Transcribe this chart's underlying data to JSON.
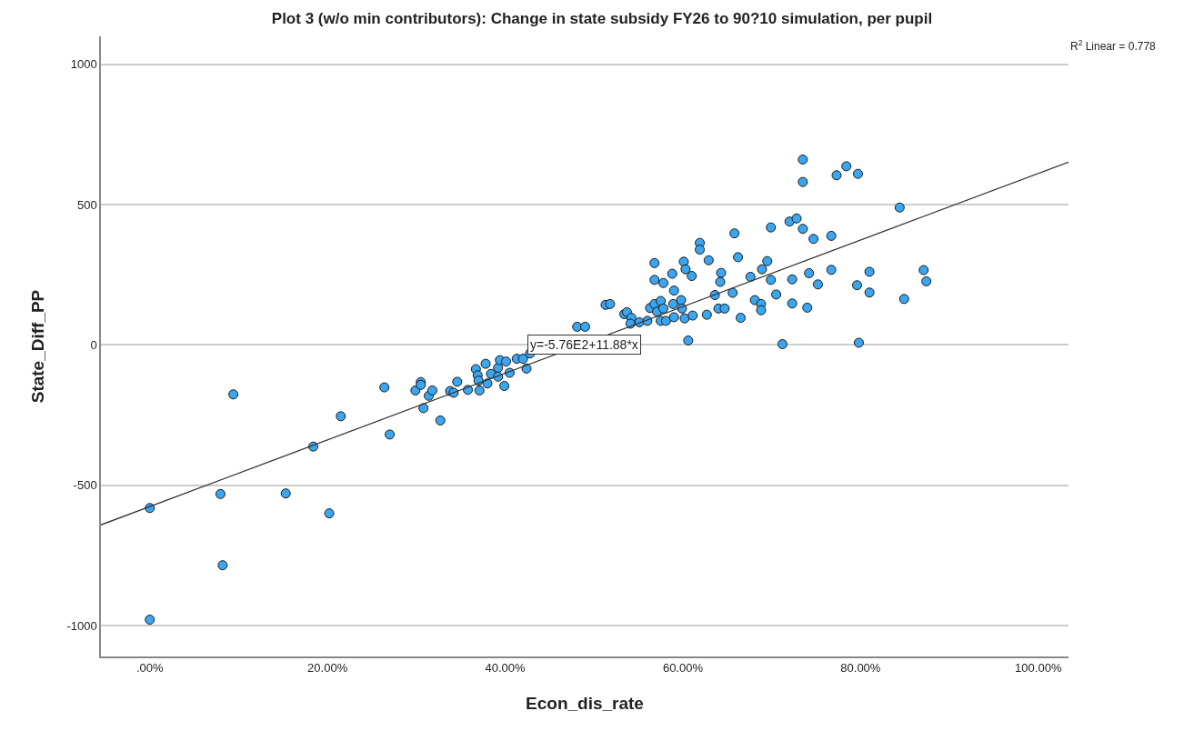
{
  "chart_data": {
    "type": "scatter",
    "title": "Plot 3 (w/o min contributors): Change in state subsidy FY26 to 90?10 simulation, per pupil",
    "xlabel": "Econ_dis_rate",
    "ylabel": "State_Diff_PP",
    "xlim": [
      -5.5,
      103.4
    ],
    "ylim": [
      -1110,
      1100
    ],
    "xticks": [
      {
        "value": 0,
        "label": ".00%"
      },
      {
        "value": 20,
        "label": "20.00%"
      },
      {
        "value": 40,
        "label": "40.00%"
      },
      {
        "value": 60,
        "label": "60.00%"
      },
      {
        "value": 80,
        "label": "80.00%"
      },
      {
        "value": 100,
        "label": "100.00%"
      }
    ],
    "yticks": [
      -1000,
      -500,
      0,
      500,
      1000
    ],
    "grid": "y",
    "marker": "circle",
    "series": [
      {
        "color": "#3aa6f0",
        "x": [
          0,
          0,
          9.4,
          7.95,
          8.2,
          15.3,
          18.4,
          20.2,
          21.5,
          26.4,
          27.0,
          29.9,
          30.5,
          30.5,
          30.8,
          31.4,
          31.8,
          32.7,
          33.8,
          34.2,
          34.6,
          35.8,
          36.7,
          36.9,
          37.0,
          37.1,
          37.8,
          38.0,
          38.4,
          39.2,
          39.2,
          39.4,
          39.9,
          40.5,
          41.3,
          42.4,
          42.0,
          42.8,
          40.1,
          48.1,
          49.0,
          51.3,
          51.8,
          53.4,
          53.7,
          54.2,
          54.1,
          55.1,
          56.0,
          56.3,
          56.8,
          56.8,
          56.8,
          57.8,
          57.1,
          57.5,
          57.8,
          57.5,
          58.1,
          58.8,
          58.9,
          59.0,
          59.0,
          59.8,
          59.9,
          60.1,
          60.3,
          61.0,
          60.2,
          61.1,
          60.6,
          61.9,
          61.9,
          62.9,
          62.7,
          64.0,
          64.7,
          64.3,
          64.2,
          63.6,
          65.8,
          66.2,
          65.6,
          66.5,
          67.6,
          68.1,
          68.8,
          68.8,
          68.9,
          69.5,
          69.9,
          69.9,
          73.5,
          73.5,
          77.3,
          78.4,
          79.7,
          84.4,
          72.0,
          72.8,
          73.5,
          74.7,
          76.7,
          70.5,
          72.3,
          74.2,
          75.2,
          76.7,
          72.3,
          74.0,
          71.2,
          79.8,
          79.6,
          81.0,
          81.0,
          84.9,
          87.1,
          87.4
        ],
        "values": [
          -581,
          -979,
          -176,
          -531,
          -785,
          -529,
          -362,
          -600,
          -254,
          -151,
          -319,
          -162,
          -132,
          -142,
          -225,
          -181,
          -162,
          -269,
          -164,
          -170,
          -131,
          -160,
          -86,
          -108,
          -127,
          -162,
          -67,
          -137,
          -103,
          -81,
          -113,
          -54,
          -146,
          -99,
          -49,
          -84,
          -49,
          -30,
          -59,
          65,
          65,
          143,
          146,
          110,
          117,
          97,
          76,
          81,
          86,
          132,
          146,
          292,
          232,
          221,
          119,
          157,
          130,
          86,
          86,
          254,
          146,
          194,
          99,
          160,
          130,
          297,
          270,
          246,
          95,
          105,
          16,
          364,
          340,
          302,
          108,
          130,
          130,
          257,
          225,
          178,
          398,
          313,
          186,
          97,
          243,
          160,
          146,
          124,
          270,
          299,
          232,
          419,
          661,
          581,
          605,
          637,
          610,
          490,
          440,
          451,
          414,
          378,
          389,
          180,
          234,
          256,
          216,
          268,
          148,
          133,
          3,
          8,
          213,
          261,
          187,
          164,
          267,
          227
        ]
      },
      {
        "type": "line",
        "marker": "none",
        "color": "#333333",
        "x": [
          -5.5,
          103.4
        ],
        "values": [
          -641,
          652
        ]
      }
    ],
    "annotations": [
      {
        "text": "y=-5.76E2+11.88*x",
        "x": 48.9,
        "y": 0
      },
      "R$^{2}$ Linear = 0.778"
    ]
  }
}
